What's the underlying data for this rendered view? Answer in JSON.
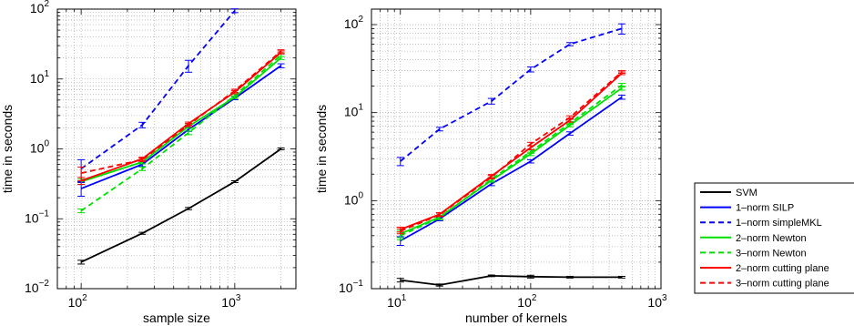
{
  "chart_data": [
    {
      "type": "line",
      "xlabel": "sample size",
      "ylabel": "time in seconds",
      "xscale": "log",
      "yscale": "log",
      "xlim": [
        70,
        2500
      ],
      "ylim": [
        0.01,
        100
      ],
      "xticks": [
        100,
        1000
      ],
      "xtick_labels": [
        {
          "base": "10",
          "exp": "2"
        },
        {
          "base": "10",
          "exp": "3"
        }
      ],
      "yticks": [
        0.01,
        0.1,
        1,
        10,
        100
      ],
      "ytick_labels": [
        {
          "base": "10",
          "exp": "−2"
        },
        {
          "base": "10",
          "exp": "−1"
        },
        {
          "base": "10",
          "exp": "0"
        },
        {
          "base": "10",
          "exp": "1"
        },
        {
          "base": "10",
          "exp": "2"
        }
      ],
      "grid": true,
      "series": [
        {
          "name": "SVM",
          "color": "#000000",
          "dash": false,
          "x": [
            100,
            250,
            500,
            1000,
            2000
          ],
          "y": [
            0.024,
            0.062,
            0.14,
            0.34,
            1.0
          ],
          "err": [
            0.0015,
            0.002,
            0.005,
            0.01,
            0.03
          ]
        },
        {
          "name": "1–norm SILP",
          "color": "#0000ff",
          "dash": false,
          "x": [
            100,
            250,
            500,
            1000,
            2000
          ],
          "y": [
            0.27,
            0.6,
            1.9,
            5.3,
            15.5
          ],
          "err": [
            0.06,
            0.04,
            0.12,
            0.25,
            1.0
          ]
        },
        {
          "name": "1–norm simpleMKL",
          "color": "#0000ff",
          "dash": true,
          "x": [
            100,
            250,
            500,
            1000
          ],
          "y": [
            0.52,
            2.2,
            15.5,
            95
          ],
          "err": [
            0.18,
            0.2,
            3.0,
            6.0
          ]
        },
        {
          "name": "2–norm Newton",
          "color": "#00e000",
          "dash": false,
          "x": [
            100,
            250,
            500,
            1000,
            2000
          ],
          "y": [
            0.34,
            0.65,
            2.1,
            5.5,
            20.0
          ],
          "err": [
            0.03,
            0.04,
            0.12,
            0.25,
            1.0
          ]
        },
        {
          "name": "3–norm Newton",
          "color": "#00e000",
          "dash": true,
          "x": [
            100,
            250,
            500,
            1000,
            2000
          ],
          "y": [
            0.13,
            0.52,
            1.7,
            5.8,
            22.0
          ],
          "err": [
            0.008,
            0.03,
            0.1,
            0.3,
            1.0
          ]
        },
        {
          "name": "2–norm cutting plane",
          "color": "#ff0000",
          "dash": false,
          "x": [
            100,
            250,
            500,
            1000,
            2000
          ],
          "y": [
            0.35,
            0.72,
            2.3,
            6.5,
            24.0
          ],
          "err": [
            0.04,
            0.04,
            0.12,
            0.35,
            1.2
          ]
        },
        {
          "name": "3–norm cutting plane",
          "color": "#ff0000",
          "dash": true,
          "x": [
            100,
            250,
            500,
            1000,
            2000
          ],
          "y": [
            0.45,
            0.7,
            2.2,
            6.8,
            25.0
          ],
          "err": [
            0.1,
            0.04,
            0.12,
            0.35,
            1.2
          ]
        }
      ]
    },
    {
      "type": "line",
      "xlabel": "number of kernels",
      "ylabel": "time in seconds",
      "xscale": "log",
      "yscale": "log",
      "xlim": [
        6,
        1000
      ],
      "ylim": [
        0.1,
        150
      ],
      "xticks": [
        10,
        100,
        1000
      ],
      "xtick_labels": [
        {
          "base": "10",
          "exp": "1"
        },
        {
          "base": "10",
          "exp": "2"
        },
        {
          "base": "10",
          "exp": "3"
        }
      ],
      "yticks": [
        0.1,
        1,
        10,
        100
      ],
      "ytick_labels": [
        {
          "base": "10",
          "exp": "−1"
        },
        {
          "base": "10",
          "exp": "0"
        },
        {
          "base": "10",
          "exp": "1"
        },
        {
          "base": "10",
          "exp": "2"
        }
      ],
      "grid": true,
      "series": [
        {
          "name": "SVM",
          "color": "#000000",
          "dash": false,
          "x": [
            10,
            20,
            50,
            100,
            200,
            500
          ],
          "y": [
            0.125,
            0.11,
            0.14,
            0.137,
            0.135,
            0.135
          ],
          "err": [
            0.006,
            0.003,
            0.003,
            0.005,
            0.003,
            0.003
          ]
        },
        {
          "name": "1–norm SILP",
          "color": "#0000ff",
          "dash": false,
          "x": [
            10,
            20,
            50,
            100,
            200,
            500
          ],
          "y": [
            0.35,
            0.62,
            1.55,
            2.8,
            5.8,
            15.0
          ],
          "err": [
            0.04,
            0.03,
            0.07,
            0.12,
            0.25,
            0.8
          ]
        },
        {
          "name": "1–norm simpleMKL",
          "color": "#0000ff",
          "dash": true,
          "x": [
            10,
            20,
            50,
            100,
            200,
            500
          ],
          "y": [
            2.8,
            6.5,
            13.5,
            31.0,
            60.0,
            90.0
          ],
          "err": [
            0.3,
            0.3,
            1.0,
            2.0,
            2.5,
            12.0
          ]
        },
        {
          "name": "2–norm Newton",
          "color": "#00e000",
          "dash": false,
          "x": [
            10,
            20,
            50,
            100,
            200,
            500
          ],
          "y": [
            0.42,
            0.65,
            1.7,
            3.4,
            7.2,
            19.0
          ],
          "err": [
            0.04,
            0.03,
            0.08,
            0.15,
            0.3,
            1.0
          ]
        },
        {
          "name": "3–norm Newton",
          "color": "#00e000",
          "dash": true,
          "x": [
            10,
            20,
            50,
            100,
            200,
            500
          ],
          "y": [
            0.4,
            0.64,
            1.75,
            3.6,
            7.6,
            20.5
          ],
          "err": [
            0.04,
            0.03,
            0.08,
            0.15,
            0.3,
            1.0
          ]
        },
        {
          "name": "2–norm cutting plane",
          "color": "#ff0000",
          "dash": false,
          "x": [
            10,
            20,
            50,
            100,
            200,
            500
          ],
          "y": [
            0.47,
            0.7,
            1.9,
            4.0,
            8.2,
            28.0
          ],
          "err": [
            0.03,
            0.03,
            0.08,
            0.2,
            0.4,
            1.0
          ]
        },
        {
          "name": "3–norm cutting plane",
          "color": "#ff0000",
          "dash": true,
          "x": [
            10,
            20,
            50,
            100,
            200,
            500
          ],
          "y": [
            0.45,
            0.69,
            1.85,
            4.4,
            8.8,
            29.0
          ],
          "err": [
            0.03,
            0.03,
            0.08,
            0.2,
            0.4,
            1.0
          ]
        }
      ]
    }
  ],
  "legend": {
    "placement": "right",
    "entries": [
      {
        "label": "SVM",
        "color": "#000000",
        "dash": false
      },
      {
        "label": "1–norm SILP",
        "color": "#0000ff",
        "dash": false
      },
      {
        "label": "1–norm simpleMKL",
        "color": "#0000ff",
        "dash": true
      },
      {
        "label": "2–norm Newton",
        "color": "#00e000",
        "dash": false
      },
      {
        "label": "3–norm Newton",
        "color": "#00e000",
        "dash": true
      },
      {
        "label": "2–norm cutting plane",
        "color": "#ff0000",
        "dash": false
      },
      {
        "label": "3–norm cutting plane",
        "color": "#ff0000",
        "dash": true
      }
    ]
  }
}
